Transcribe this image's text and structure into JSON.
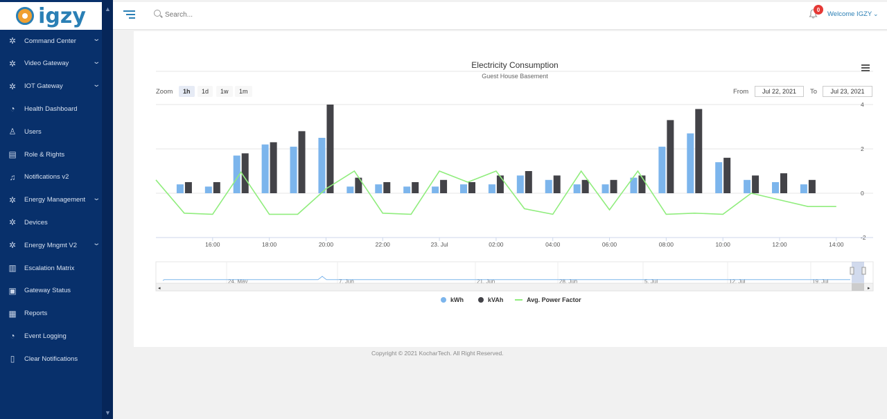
{
  "sidebar": {
    "logo_text": "igzy",
    "items": [
      {
        "label": "Command Center",
        "icon": "gear-icon",
        "caret": true
      },
      {
        "label": "Video Gateway",
        "icon": "gear-icon",
        "caret": true
      },
      {
        "label": "IOT Gateway",
        "icon": "gear-icon",
        "caret": true
      },
      {
        "label": "Health Dashboard",
        "icon": "dashboard-icon",
        "caret": false
      },
      {
        "label": "Users",
        "icon": "user-icon",
        "caret": false
      },
      {
        "label": "Role & Rights",
        "icon": "document-icon",
        "caret": false
      },
      {
        "label": "Notifications v2",
        "icon": "bell-icon",
        "caret": false
      },
      {
        "label": "Energy Management",
        "icon": "gear-icon",
        "caret": true
      },
      {
        "label": "Devices",
        "icon": "gear-icon",
        "caret": false
      },
      {
        "label": "Energy Mngmt V2",
        "icon": "gear-icon",
        "caret": true
      },
      {
        "label": "Escalation Matrix",
        "icon": "bar-chart-icon",
        "caret": false
      },
      {
        "label": "Gateway Status",
        "icon": "monitor-icon",
        "caret": false
      },
      {
        "label": "Reports",
        "icon": "report-icon",
        "caret": false
      },
      {
        "label": "Event Logging",
        "icon": "dashboard-icon",
        "caret": false
      },
      {
        "label": "Clear Notifications",
        "icon": "trash-icon",
        "caret": false
      }
    ]
  },
  "topbar": {
    "search_placeholder": "Search...",
    "notification_count": "0",
    "welcome": "Welcome IGZY"
  },
  "chart_controls": {
    "zoom_label": "Zoom",
    "zoom_options": [
      "1h",
      "1d",
      "1w",
      "1m"
    ],
    "zoom_selected": "1h",
    "from_label": "From",
    "from_value": "Jul 22, 2021",
    "to_label": "To",
    "to_value": "Jul 23, 2021"
  },
  "chart_data": {
    "type": "bar",
    "title": "Electricity Consumption",
    "subtitle": "Guest House Basement",
    "x_tick_labels": [
      "16:00",
      "18:00",
      "20:00",
      "22:00",
      "23. Jul",
      "02:00",
      "04:00",
      "06:00",
      "08:00",
      "10:00",
      "12:00",
      "14:00"
    ],
    "x_tick_hours": [
      16,
      18,
      20,
      22,
      24,
      26,
      28,
      30,
      32,
      34,
      36,
      38
    ],
    "x_range_hours": [
      14,
      39.3
    ],
    "ylim": [
      -2,
      4
    ],
    "y_ticks": [
      -2,
      0,
      2,
      4
    ],
    "grid": true,
    "legend_position": "bottom-center",
    "hours": [
      15,
      16,
      17,
      18,
      19,
      20,
      21,
      22,
      23,
      24,
      25,
      26,
      27,
      28,
      29,
      30,
      31,
      32,
      33,
      34,
      35,
      36,
      37
    ],
    "series": [
      {
        "name": "kWh",
        "type": "bar",
        "color": "#7cb5ec",
        "values": [
          0.4,
          0.3,
          1.7,
          2.2,
          2.1,
          2.5,
          0.3,
          0.4,
          0.3,
          0.3,
          0.4,
          0.4,
          0.8,
          0.6,
          0.4,
          0.4,
          0.7,
          2.1,
          2.7,
          1.4,
          0.6,
          0.5,
          0.4
        ]
      },
      {
        "name": "kVAh",
        "type": "bar",
        "color": "#434348",
        "values": [
          0.5,
          0.5,
          1.8,
          2.3,
          2.8,
          4.0,
          0.7,
          0.5,
          0.5,
          0.6,
          0.5,
          0.8,
          1.0,
          0.8,
          0.6,
          0.6,
          0.8,
          3.3,
          3.8,
          1.6,
          0.8,
          0.9,
          0.6
        ]
      },
      {
        "name": "Avg. Power Factor",
        "type": "line",
        "color": "#90ed7d",
        "points": [
          [
            14,
            0.6
          ],
          [
            15,
            -0.9
          ],
          [
            16,
            -0.95
          ],
          [
            17,
            0.95
          ],
          [
            18,
            -0.95
          ],
          [
            19,
            -0.95
          ],
          [
            20,
            0.2
          ],
          [
            21,
            1.0
          ],
          [
            22,
            -0.9
          ],
          [
            23,
            -0.95
          ],
          [
            24,
            1.0
          ],
          [
            25,
            0.5
          ],
          [
            26,
            1.0
          ],
          [
            27,
            -0.7
          ],
          [
            28,
            -0.95
          ],
          [
            29,
            1.0
          ],
          [
            30,
            -0.75
          ],
          [
            31,
            1.0
          ],
          [
            32,
            -0.95
          ],
          [
            33,
            -0.9
          ],
          [
            34,
            -0.95
          ],
          [
            35,
            0.0
          ],
          [
            36,
            -0.3
          ],
          [
            37,
            -0.6
          ],
          [
            38,
            -0.6
          ]
        ]
      }
    ],
    "navigator": {
      "tick_labels": [
        "24. May",
        "7. Jun",
        "21. Jun",
        "28. Jun",
        "5. Jul",
        "12. Jul",
        "19. Jul"
      ]
    }
  },
  "footer": {
    "copyright": "Copyright © 2021 KocharTech. All Right Reserved."
  }
}
